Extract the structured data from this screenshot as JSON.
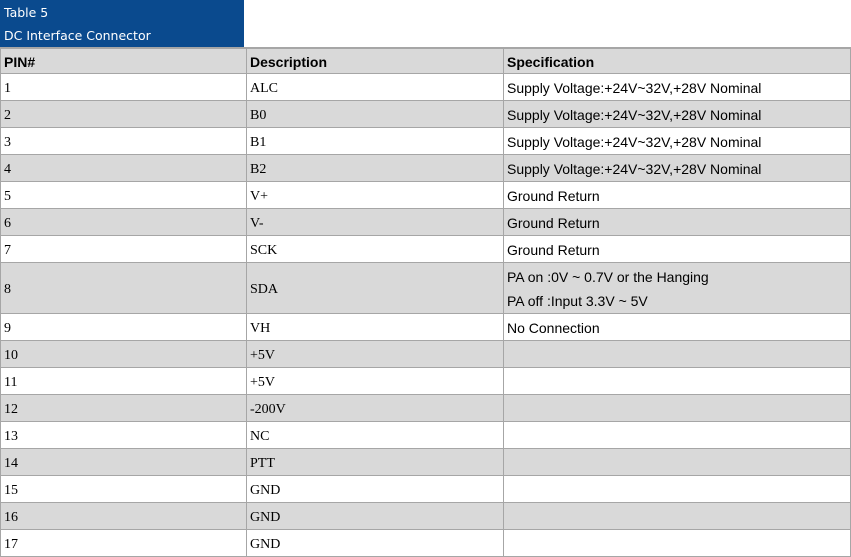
{
  "caption": {
    "line1": "Table 5",
    "line2": "DC Interface Connector"
  },
  "headers": {
    "pin": "PIN#",
    "description": "Description",
    "specification": "Specification"
  },
  "rows": [
    {
      "pin": "1",
      "description": "ALC",
      "specification": [
        "Supply Voltage:+24V~32V,+28V Nominal"
      ]
    },
    {
      "pin": "2",
      "description": "B0",
      "specification": [
        "Supply Voltage:+24V~32V,+28V Nominal"
      ]
    },
    {
      "pin": "3",
      "description": "B1",
      "specification": [
        "Supply Voltage:+24V~32V,+28V Nominal"
      ]
    },
    {
      "pin": "4",
      "description": "B2",
      "specification": [
        "Supply Voltage:+24V~32V,+28V Nominal"
      ]
    },
    {
      "pin": "5",
      "description": "V+",
      "specification": [
        "Ground Return"
      ]
    },
    {
      "pin": "6",
      "description": "V-",
      "specification": [
        "Ground Return"
      ]
    },
    {
      "pin": "7",
      "description": "SCK",
      "specification": [
        "Ground Return"
      ]
    },
    {
      "pin": "8",
      "description": "SDA",
      "specification": [
        "PA on :0V ~ 0.7V or the Hanging",
        "PA off :Input 3.3V ~ 5V"
      ]
    },
    {
      "pin": "9",
      "description": "VH",
      "specification": [
        "No Connection"
      ]
    },
    {
      "pin": "10",
      "description": "+5V",
      "specification": []
    },
    {
      "pin": "11",
      "description": "+5V",
      "specification": []
    },
    {
      "pin": "12",
      "description": "-200V",
      "specification": []
    },
    {
      "pin": "13",
      "description": "NC",
      "specification": []
    },
    {
      "pin": "14",
      "description": "PTT",
      "specification": []
    },
    {
      "pin": "15",
      "description": "GND",
      "specification": []
    },
    {
      "pin": "16",
      "description": "GND",
      "specification": []
    },
    {
      "pin": "17",
      "description": "GND",
      "specification": []
    }
  ],
  "colors": {
    "caption_bg": "#0a4a8e",
    "shaded_row_bg": "#d9d9d9",
    "border": "#a6a6a6"
  }
}
